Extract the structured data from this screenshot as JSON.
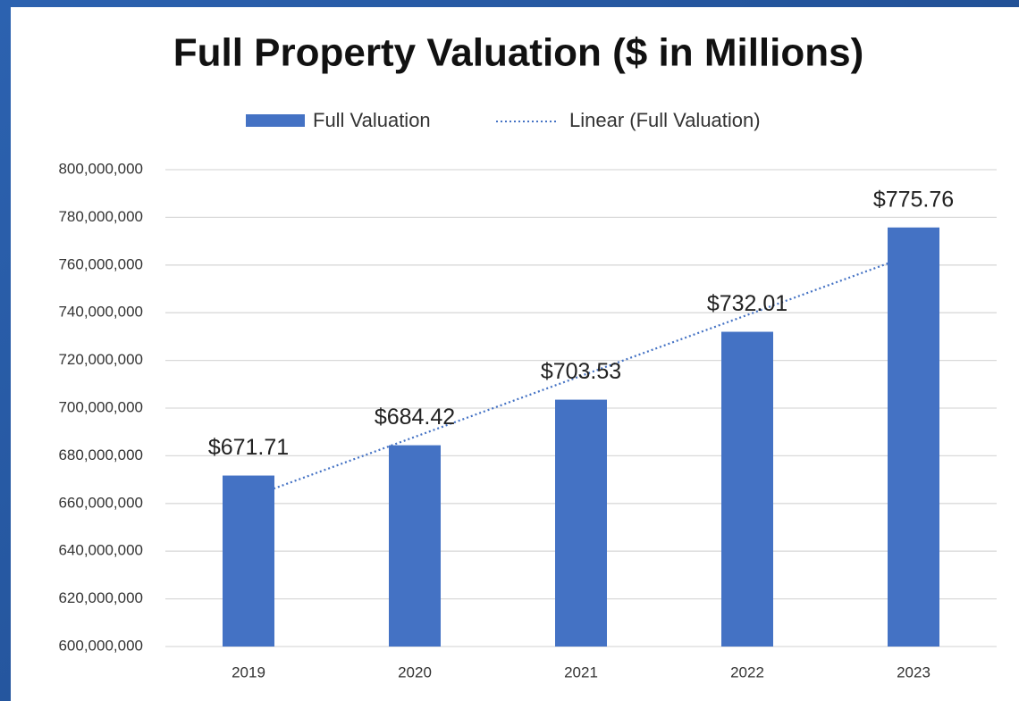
{
  "chart_data": {
    "type": "bar",
    "title": "Full Property Valuation ($ in Millions)",
    "categories": [
      "2019",
      "2020",
      "2021",
      "2022",
      "2023"
    ],
    "series": [
      {
        "name": "Full Valuation",
        "color": "#4472c4",
        "values": [
          671710000,
          684420000,
          703530000,
          732010000,
          775760000
        ],
        "value_labels": [
          "$671.71",
          "$684.42",
          "$703.53",
          "$732.01",
          "$775.76"
        ]
      }
    ],
    "trendline": {
      "name": "Linear (Full Valuation)",
      "type": "linear",
      "color": "#4472c4"
    },
    "ylim": [
      600000000,
      800000000
    ],
    "yticks": [
      {
        "value": 600000000,
        "label": "600,000,000"
      },
      {
        "value": 620000000,
        "label": "620,000,000"
      },
      {
        "value": 640000000,
        "label": "640,000,000"
      },
      {
        "value": 660000000,
        "label": "660,000,000"
      },
      {
        "value": 680000000,
        "label": "680,000,000"
      },
      {
        "value": 700000000,
        "label": "700,000,000"
      },
      {
        "value": 720000000,
        "label": "720,000,000"
      },
      {
        "value": 740000000,
        "label": "740,000,000"
      },
      {
        "value": 760000000,
        "label": "760,000,000"
      },
      {
        "value": 780000000,
        "label": "780,000,000"
      },
      {
        "value": 800000000,
        "label": "800,000,000"
      }
    ],
    "grid": true,
    "legend": "top"
  }
}
